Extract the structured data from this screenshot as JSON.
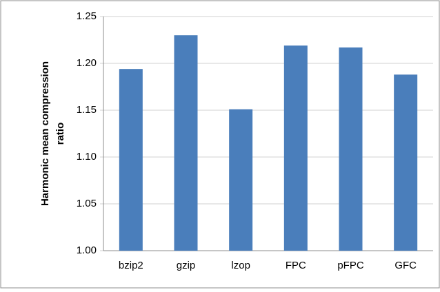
{
  "chart_data": {
    "type": "bar",
    "ylabel": [
      "Harmonic  mean compression",
      "ratio"
    ],
    "categories": [
      "bzip2",
      "gzip",
      "lzop",
      "FPC",
      "pFPC",
      "GFC"
    ],
    "values": [
      1.194,
      1.23,
      1.151,
      1.219,
      1.217,
      1.188
    ],
    "color": "#4a7ebb",
    "ylim": [
      1.0,
      1.25
    ],
    "yticks": [
      {
        "value": 1.0,
        "label": "1.00"
      },
      1.05,
      {
        "value": 1.1,
        "label": "1.10"
      },
      1.15,
      {
        "value": 1.2,
        "label": "1.20"
      },
      1.25
    ],
    "grid": true
  }
}
